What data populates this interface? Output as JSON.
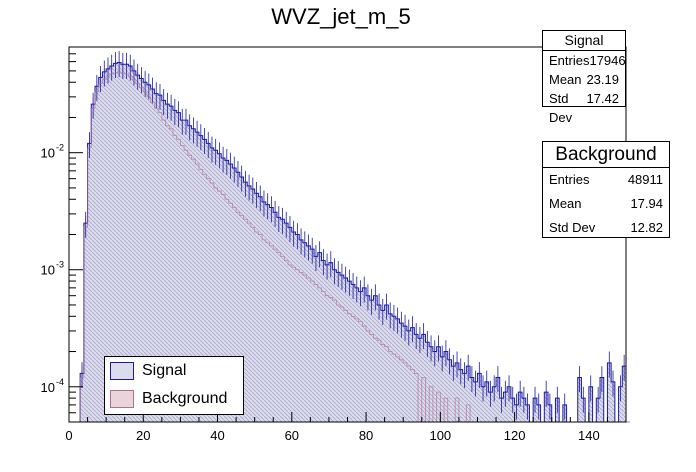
{
  "chart_data": {
    "type": "histogram",
    "title": "WVZ_jet_m_5",
    "xlabel": "",
    "ylabel": "",
    "xlim": [
      0,
      150
    ],
    "ylim": [
      5e-05,
      0.08
    ],
    "yscale": "log",
    "bin_width": 1,
    "x_ticks": [
      0,
      20,
      40,
      60,
      80,
      100,
      120,
      140
    ],
    "x_tick_labels": [
      "0",
      "20",
      "40",
      "60",
      "80",
      "100",
      "120",
      "140"
    ],
    "y_ticks": [
      0.0001,
      0.001,
      0.01
    ],
    "y_tick_labels": [
      "10",
      "10",
      "10"
    ],
    "y_tick_exponents": [
      "-4",
      "-3",
      "-2"
    ],
    "legend": {
      "placement": "bottom-left",
      "entries": [
        {
          "label": "Signal",
          "fill": "#dcdcec",
          "edge": "#1a1aa6"
        },
        {
          "label": "Background",
          "fill": "#e9d4dc",
          "edge": "#b07090"
        }
      ]
    },
    "stats": [
      {
        "title": "Signal",
        "rows": [
          {
            "label": "Entries",
            "value": "17946"
          },
          {
            "label": "Mean",
            "value": "23.19"
          },
          {
            "label": "Std Dev",
            "value": "17.42"
          }
        ]
      },
      {
        "title": "Background",
        "rows": [
          {
            "label": "Entries",
            "value": "48911"
          },
          {
            "label": "Mean",
            "value": "17.94"
          },
          {
            "label": "Std Dev",
            "value": "12.82"
          }
        ]
      }
    ],
    "series": [
      {
        "name": "Signal",
        "bin_edges": [
          0,
          150
        ],
        "values": [
          0,
          0,
          0,
          0.00013,
          0.0025,
          0.012,
          0.026,
          0.037,
          0.044,
          0.049,
          0.052,
          0.055,
          0.058,
          0.059,
          0.057,
          0.057,
          0.055,
          0.05,
          0.046,
          0.043,
          0.04,
          0.038,
          0.035,
          0.032,
          0.031,
          0.028,
          0.026,
          0.025,
          0.023,
          0.022,
          0.019,
          0.019,
          0.017,
          0.016,
          0.015,
          0.014,
          0.013,
          0.012,
          0.011,
          0.0105,
          0.0098,
          0.009,
          0.0086,
          0.008,
          0.0074,
          0.0068,
          0.0062,
          0.0056,
          0.0052,
          0.0049,
          0.0045,
          0.0042,
          0.0038,
          0.0036,
          0.0034,
          0.0031,
          0.0028,
          0.0027,
          0.0025,
          0.0023,
          0.0021,
          0.002,
          0.0018,
          0.0017,
          0.0016,
          0.0015,
          0.0013,
          0.0014,
          0.0012,
          0.0011,
          0.00115,
          0.001,
          0.00095,
          0.0009,
          0.00085,
          0.0008,
          0.00075,
          0.0007,
          0.00065,
          0.0007,
          0.0006,
          0.00055,
          0.0006,
          0.0005,
          0.00045,
          0.0005,
          0.00042,
          0.0004,
          0.00038,
          0.00035,
          0.00033,
          0.0003,
          0.00032,
          0.00028,
          0.00026,
          0.00028,
          0.00024,
          0.00022,
          0.0002,
          0.00022,
          0.00018,
          0.0002,
          0.00017,
          0.00015,
          0.00016,
          0.00014,
          0.00013,
          0.00015,
          0.00012,
          0.00011,
          0.00013,
          0.0001,
          0.00011,
          9e-05,
          0.0001,
          0.00012,
          8e-05,
          9e-05,
          0.0001,
          8e-05,
          7e-05,
          9e-05,
          8e-05,
          7e-05,
          0,
          8e-05,
          7e-05,
          0,
          9e-05,
          7e-05,
          0,
          8e-05,
          0,
          7e-05,
          0,
          0,
          0,
          0.00012,
          8e-05,
          0,
          0.0001,
          0,
          8e-05,
          0.00012,
          0,
          0.00016,
          0.00011,
          0,
          0.0001,
          0.00015
        ]
      },
      {
        "name": "Background",
        "bin_edges": [
          0,
          150
        ],
        "values": [
          0,
          0,
          0,
          0.00012,
          0.0023,
          0.011,
          0.024,
          0.033,
          0.039,
          0.042,
          0.045,
          0.047,
          0.048,
          0.049,
          0.048,
          0.047,
          0.045,
          0.042,
          0.039,
          0.036,
          0.033,
          0.03,
          0.027,
          0.024,
          0.022,
          0.019,
          0.017,
          0.016,
          0.014,
          0.013,
          0.0115,
          0.0105,
          0.0095,
          0.0088,
          0.008,
          0.0072,
          0.0065,
          0.006,
          0.0055,
          0.005,
          0.0047,
          0.0044,
          0.004,
          0.0037,
          0.0034,
          0.0031,
          0.0029,
          0.0027,
          0.0025,
          0.0023,
          0.0021,
          0.002,
          0.0018,
          0.0017,
          0.0016,
          0.0015,
          0.0014,
          0.0013,
          0.0012,
          0.0011,
          0.00105,
          0.001,
          0.00095,
          0.0009,
          0.00085,
          0.0008,
          0.00075,
          0.0007,
          0.00065,
          0.0006,
          0.00058,
          0.00055,
          0.0005,
          0.00048,
          0.00045,
          0.00042,
          0.0004,
          0.00038,
          0.00036,
          0.00033,
          0.0003,
          0.00028,
          0.00026,
          0.00025,
          0.00023,
          0.00022,
          0.0002,
          0.00019,
          0.00018,
          0.00017,
          0.00016,
          0.00015,
          0.00014,
          0.00013,
          0,
          0.00012,
          0,
          0.0001,
          0,
          9e-05,
          0,
          8e-05,
          0,
          0,
          8e-05,
          0,
          0,
          7e-05,
          0,
          0,
          0,
          0,
          0,
          0,
          0,
          0,
          0,
          0,
          0,
          0,
          0,
          0,
          0,
          0,
          0,
          0,
          0,
          0,
          0,
          0,
          0,
          0,
          0,
          0,
          0,
          0,
          0,
          0,
          0,
          0,
          0,
          0,
          0,
          0,
          0,
          0,
          0,
          0,
          0,
          0,
          0
        ]
      }
    ]
  }
}
